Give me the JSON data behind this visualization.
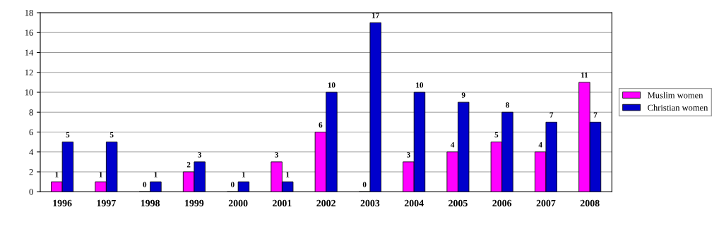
{
  "chart_data": {
    "type": "bar",
    "categories": [
      "1996",
      "1997",
      "1998",
      "1999",
      "2000",
      "2001",
      "2002",
      "2003",
      "2004",
      "2005",
      "2006",
      "2007",
      "2008"
    ],
    "series": [
      {
        "name": "Muslim women",
        "color": "#ff00ff",
        "values": [
          1,
          1,
          0,
          2,
          0,
          3,
          6,
          0,
          3,
          4,
          5,
          4,
          11
        ]
      },
      {
        "name": "Christian women",
        "color": "#0000cc",
        "values": [
          5,
          5,
          1,
          3,
          1,
          1,
          10,
          17,
          10,
          9,
          8,
          7,
          7
        ]
      }
    ],
    "ylim": [
      0,
      18
    ],
    "yticks": [
      0,
      2,
      4,
      6,
      8,
      10,
      12,
      14,
      16,
      18
    ],
    "grid": "y",
    "legend": "right",
    "data_labels": true
  }
}
